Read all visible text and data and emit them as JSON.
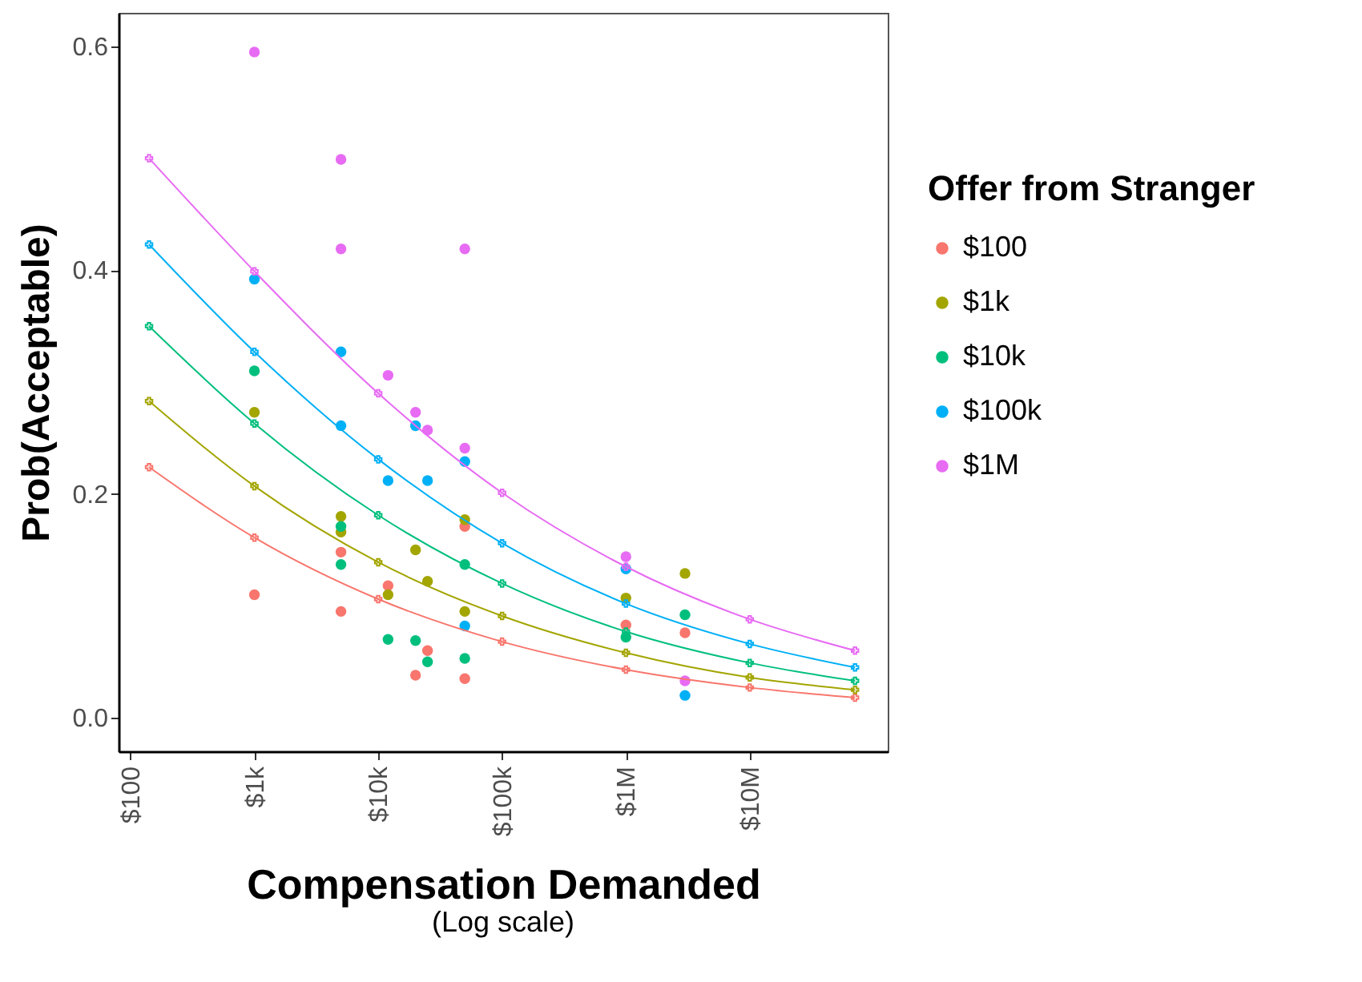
{
  "chart_data": {
    "type": "scatter",
    "xlabel": "Compensation Demanded",
    "ylabel": "Prob(Acceptable)",
    "legend_title": "Offer from Stranger",
    "annotations": [
      "(Log scale)"
    ],
    "log": "x",
    "grid": false,
    "legend": "right",
    "xlim": [
      80,
      130000000
    ],
    "xticks": [
      {
        "value": 100,
        "label": "$100"
      },
      {
        "value": 1000,
        "label": "$1k"
      },
      {
        "value": 10000,
        "label": "$10k"
      },
      {
        "value": 100000,
        "label": "$100k"
      },
      {
        "value": 1000000,
        "label": "$1M"
      },
      {
        "value": 10000000,
        "label": "$10M"
      }
    ],
    "ylim": [
      -0.03,
      0.63
    ],
    "yticks": [
      {
        "value": 0,
        "label": "0.0"
      },
      0.2,
      0.4,
      0.6
    ],
    "series": [
      {
        "name": "$100",
        "marker": "circle",
        "color": "#f8766d",
        "x": [
          1000,
          5000,
          5000,
          12000,
          20000,
          25000,
          50000,
          50000,
          1000000,
          3000000
        ],
        "values": [
          0.11,
          0.148,
          0.095,
          0.118,
          0.038,
          0.06,
          0.171,
          0.035,
          0.083,
          0.076
        ]
      },
      {
        "name": "$1k",
        "marker": "circle",
        "color": "#a3a500",
        "x": [
          1000,
          5000,
          5000,
          12000,
          20000,
          25000,
          50000,
          50000,
          1000000,
          3000000
        ],
        "values": [
          0.273,
          0.18,
          0.166,
          0.11,
          0.15,
          0.122,
          0.177,
          0.095,
          0.107,
          0.129
        ]
      },
      {
        "name": "$10k",
        "marker": "circle",
        "color": "#00bf7d",
        "x": [
          1000,
          5000,
          5000,
          12000,
          20000,
          25000,
          50000,
          50000,
          1000000,
          3000000
        ],
        "values": [
          0.31,
          0.171,
          0.137,
          0.07,
          0.069,
          0.05,
          0.137,
          0.053,
          0.072,
          0.092
        ]
      },
      {
        "name": "$100k",
        "marker": "circle",
        "color": "#00b0f6",
        "x": [
          1000,
          5000,
          5000,
          12000,
          20000,
          25000,
          50000,
          50000,
          1000000,
          3000000
        ],
        "values": [
          0.392,
          0.327,
          0.261,
          0.212,
          0.261,
          0.212,
          0.229,
          0.082,
          0.133,
          0.02
        ]
      },
      {
        "name": "$1M",
        "marker": "circle",
        "color": "#e76bf3",
        "x": [
          1000,
          5000,
          5000,
          12000,
          20000,
          25000,
          50000,
          50000,
          1000000,
          3000000
        ],
        "values": [
          0.595,
          0.499,
          0.419,
          0.306,
          0.273,
          0.257,
          0.419,
          0.241,
          0.144,
          0.033
        ]
      },
      {
        "type": "line",
        "marker": "cross",
        "color": "#f8766d",
        "x": [
          141,
          1000,
          10000,
          100000,
          1000000,
          10000000,
          70800000
        ],
        "values": [
          0.224,
          0.161,
          0.106,
          0.068,
          0.043,
          0.027,
          0.018
        ]
      },
      {
        "type": "line",
        "marker": "cross",
        "color": "#a3a500",
        "x": [
          141,
          1000,
          10000,
          100000,
          1000000,
          10000000,
          70800000
        ],
        "values": [
          0.283,
          0.207,
          0.139,
          0.091,
          0.058,
          0.036,
          0.025
        ]
      },
      {
        "type": "line",
        "marker": "cross",
        "color": "#00bf7d",
        "x": [
          141,
          1000,
          10000,
          100000,
          1000000,
          10000000,
          70800000
        ],
        "values": [
          0.35,
          0.263,
          0.181,
          0.12,
          0.077,
          0.049,
          0.033
        ]
      },
      {
        "type": "line",
        "marker": "cross",
        "color": "#00b0f6",
        "x": [
          141,
          1000,
          10000,
          100000,
          1000000,
          10000000,
          70800000
        ],
        "values": [
          0.423,
          0.327,
          0.231,
          0.156,
          0.102,
          0.066,
          0.045
        ]
      },
      {
        "type": "line",
        "marker": "cross",
        "color": "#e76bf3",
        "x": [
          141,
          1000,
          10000,
          100000,
          1000000,
          10000000,
          70800000
        ],
        "values": [
          0.5,
          0.399,
          0.29,
          0.201,
          0.135,
          0.088,
          0.06
        ]
      }
    ]
  }
}
